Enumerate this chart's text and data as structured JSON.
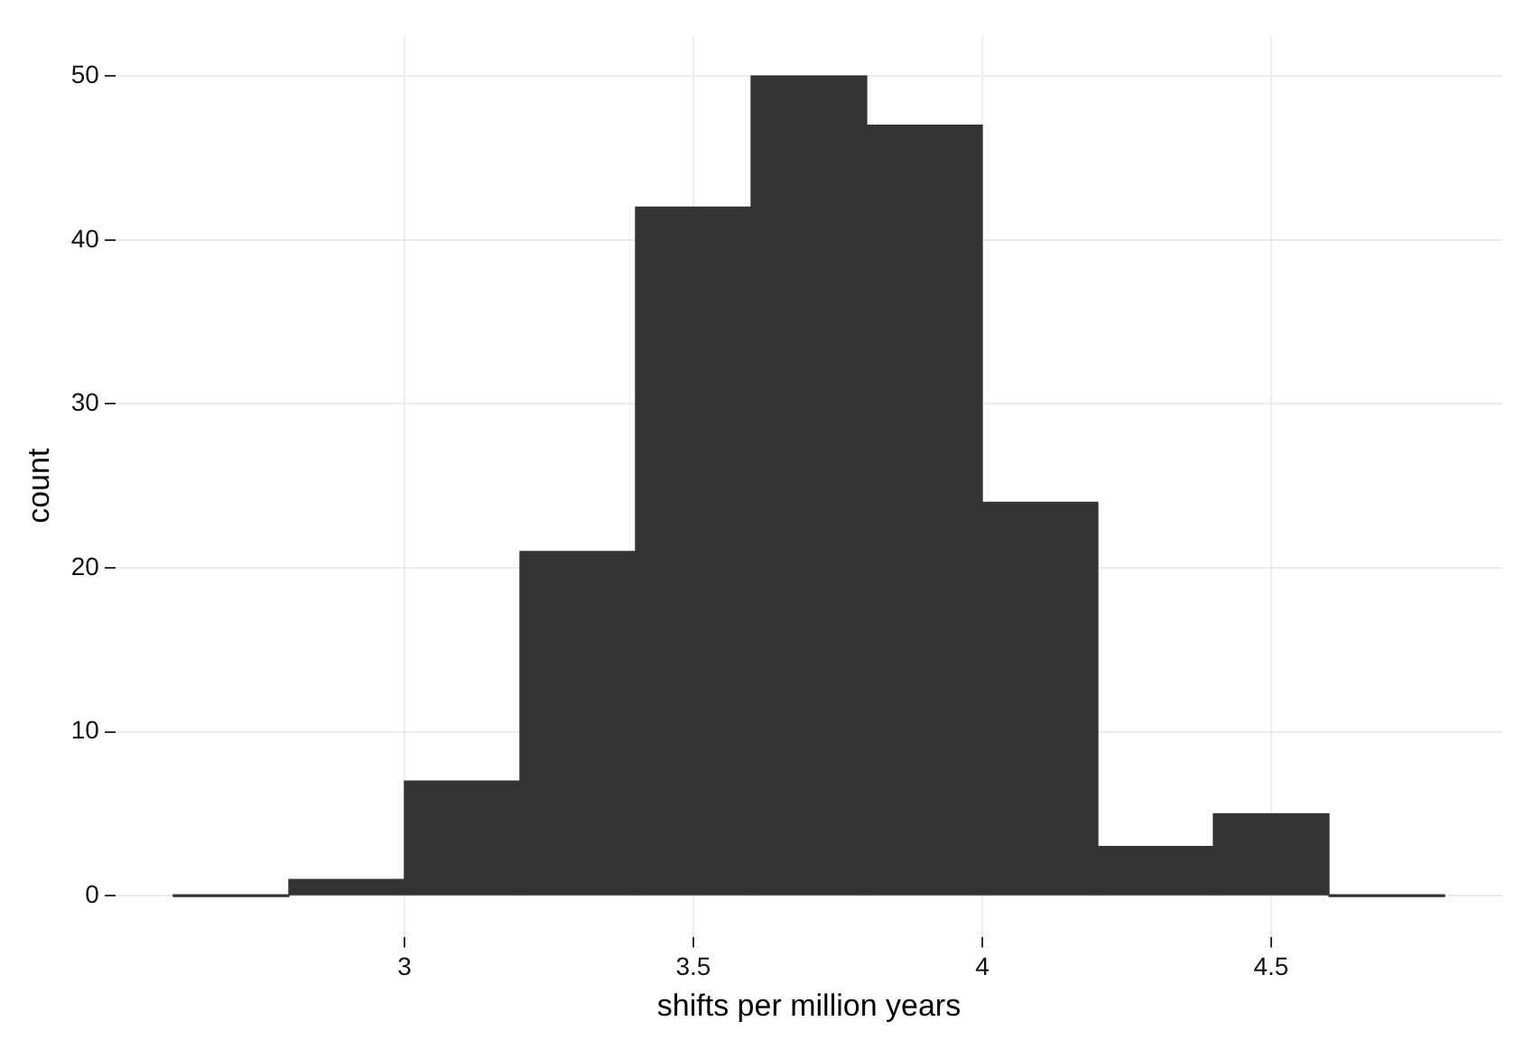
{
  "chart_data": {
    "type": "histogram",
    "xlabel": "shifts per million years",
    "ylabel": "count",
    "bins": [
      2.6,
      2.8,
      3.0,
      3.2,
      3.4,
      3.6,
      3.8,
      4.0,
      4.2,
      4.4,
      4.6,
      4.8
    ],
    "values": [
      0,
      1,
      7,
      21,
      42,
      50,
      47,
      24,
      3,
      5,
      0
    ],
    "color": "#333333",
    "xlim": [
      2.5,
      4.9
    ],
    "xticks": [
      3,
      3.5,
      4,
      4.5
    ],
    "ylim": [
      -2.5,
      52.5
    ],
    "yticks": [
      0,
      10,
      20,
      30,
      40,
      50
    ],
    "grid": true,
    "legend": false
  }
}
